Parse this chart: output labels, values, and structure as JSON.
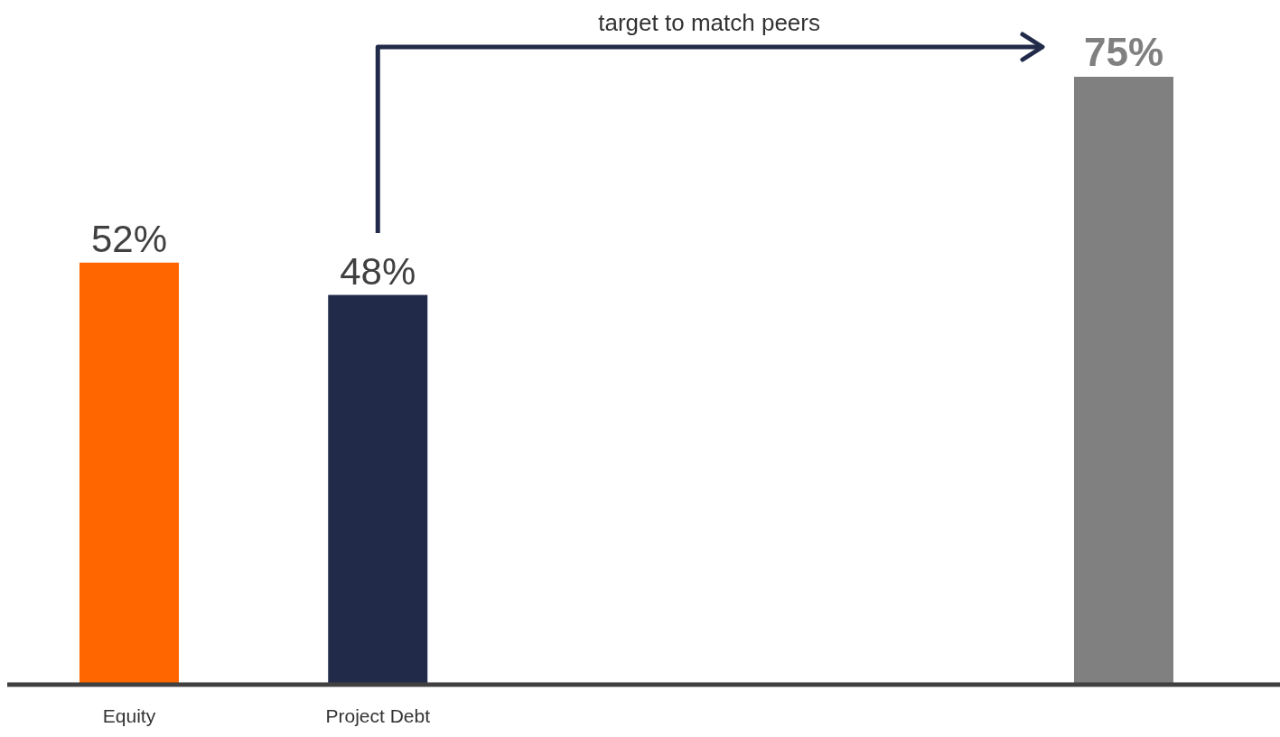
{
  "chart_data": {
    "type": "bar",
    "categories": [
      "Equity",
      "Project Debt",
      null,
      null,
      null
    ],
    "values": [
      52,
      48,
      null,
      null,
      75
    ],
    "colors": [
      "#ff6600",
      "#222a4a",
      null,
      null,
      "#808080"
    ],
    "value_labels": [
      "52%",
      "48%",
      null,
      null,
      "75%"
    ],
    "annotations": [
      "target to match peers"
    ]
  }
}
